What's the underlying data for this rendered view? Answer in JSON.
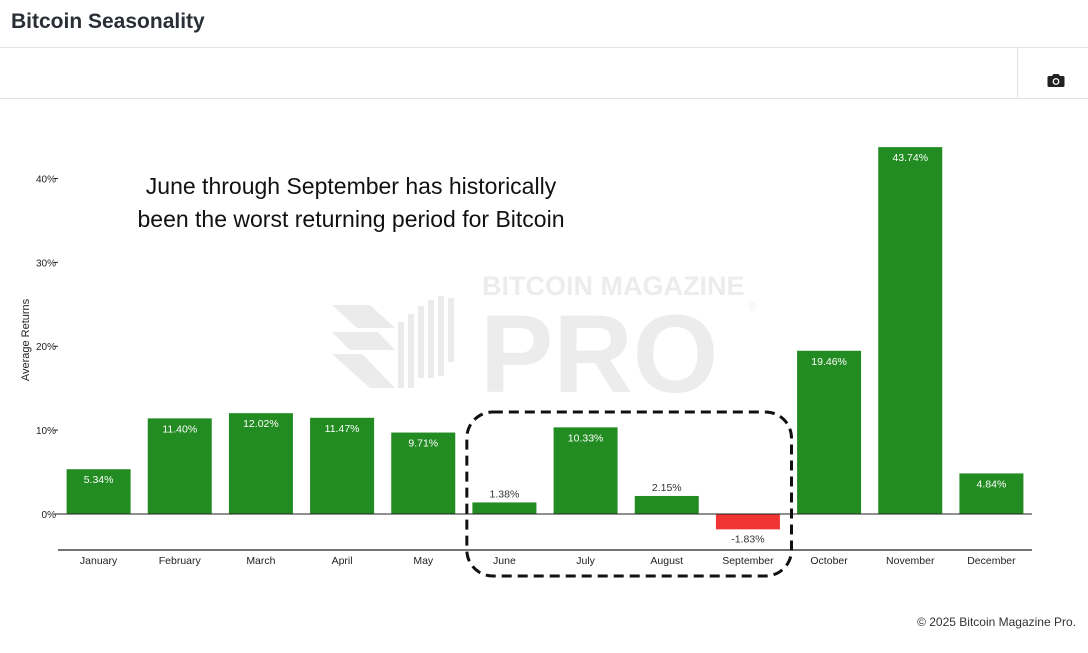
{
  "header": {
    "title": "Bitcoin Seasonality"
  },
  "toolbar": {
    "camera_icon": "camera-icon"
  },
  "footer": {
    "credit": "© 2025 Bitcoin Magazine Pro."
  },
  "watermark": {
    "line1": "BITCOIN MAGAZINE",
    "line2": "PRO",
    "mark": "®"
  },
  "colors": {
    "positive": "#228b22",
    "negative": "#f03333",
    "annotation_border": "#111111"
  },
  "chart_data": {
    "type": "bar",
    "categories": [
      "January",
      "February",
      "March",
      "April",
      "May",
      "June",
      "July",
      "August",
      "September",
      "October",
      "November",
      "December"
    ],
    "values": [
      5.34,
      11.4,
      12.02,
      11.47,
      9.71,
      1.38,
      10.33,
      2.15,
      -1.83,
      19.46,
      43.74,
      4.84
    ],
    "labels": [
      "5.34%",
      "11.40%",
      "12.02%",
      "11.47%",
      "9.71%",
      "1.38%",
      "10.33%",
      "2.15%",
      "-1.83%",
      "19.46%",
      "43.74%",
      "4.84%"
    ],
    "ylabel": "Average Returns",
    "yticks": [
      0,
      10,
      20,
      30,
      40
    ],
    "ytick_labels": [
      "0%",
      "10%",
      "20%",
      "30%",
      "40%"
    ],
    "ylim": [
      -4.4,
      45
    ],
    "grid": false,
    "annotation": {
      "line1": "June through September has historically",
      "line2": "been the worst returning period for Bitcoin",
      "highlight_range": [
        "June",
        "September"
      ]
    }
  }
}
